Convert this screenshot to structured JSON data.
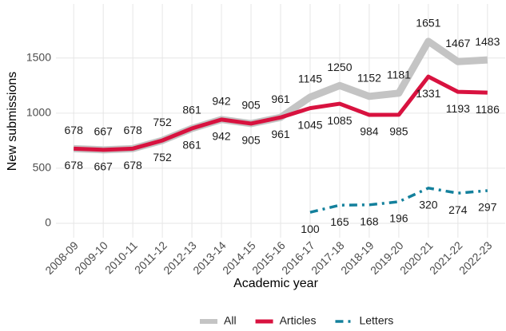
{
  "chart_data": {
    "type": "line",
    "x_label": "Academic year",
    "y_label": "New submissions",
    "categories": [
      "2008-09",
      "2009-10",
      "2010-11",
      "2011-12",
      "2012-13",
      "2013-14",
      "2014-15",
      "2015-16",
      "2016-17",
      "2017-18",
      "2018-19",
      "2019-20",
      "2020-21",
      "2021-22",
      "2022-23"
    ],
    "series": [
      {
        "name": "All",
        "color": "#c4c4c4",
        "linewidth": 9,
        "dash": "solid",
        "label_side": "above",
        "values": [
          678,
          667,
          678,
          752,
          861,
          942,
          905,
          961,
          1145,
          1250,
          1152,
          1181,
          1651,
          1467,
          1483
        ]
      },
      {
        "name": "Articles",
        "color": "#d8123f",
        "linewidth": 5,
        "dash": "solid",
        "label_side": "below",
        "values": [
          678,
          667,
          678,
          752,
          861,
          942,
          905,
          961,
          1045,
          1085,
          984,
          985,
          1331,
          1193,
          1186
        ]
      },
      {
        "name": "Letters",
        "color": "#13809c",
        "linewidth": 3.5,
        "dash": "dashdot",
        "label_side": "below",
        "values": [
          null,
          null,
          null,
          null,
          null,
          null,
          null,
          null,
          100,
          165,
          168,
          196,
          320,
          274,
          297
        ]
      }
    ],
    "ylim": [
      -130,
      1990
    ],
    "yticks": [
      0,
      500,
      1000,
      1500
    ],
    "grid": true,
    "legend": "bottom"
  }
}
